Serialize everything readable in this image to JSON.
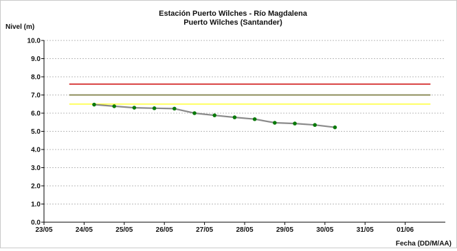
{
  "chart_data": {
    "type": "line",
    "title": "Estación Puerto Wilches - Río Magdalena",
    "subtitle": "Puerto Wilches (Santander)",
    "ylabel": "Nivel (m)",
    "xlabel": "Fecha (DD/M/AA)",
    "ylim": [
      0,
      10
    ],
    "xlim": [
      0,
      10
    ],
    "grid": true,
    "y_ticks": [
      "0.0",
      "1.0",
      "2.0",
      "3.0",
      "4.0",
      "5.0",
      "6.0",
      "7.0",
      "8.0",
      "9.0",
      "10.0"
    ],
    "x_ticks": [
      "23/05",
      "24/05",
      "25/05",
      "26/05",
      "27/05",
      "28/05",
      "29/05",
      "30/05",
      "31/05",
      "01/06"
    ],
    "thresholds": [
      {
        "value": 7.6,
        "x": [
          0.63,
          9.63
        ],
        "color": "#cc0000"
      },
      {
        "value": 7.0,
        "x": [
          0.63,
          9.63
        ],
        "color": "#8c8c5a"
      },
      {
        "value": 6.5,
        "x": [
          0.63,
          9.63
        ],
        "color": "#ffff33"
      }
    ],
    "series": [
      {
        "x": [
          1.25,
          1.75,
          2.25,
          2.75,
          3.25,
          3.75,
          4.25,
          4.75,
          5.25,
          5.75,
          6.25,
          6.75,
          7.25
        ],
        "values": [
          6.47,
          6.38,
          6.3,
          6.27,
          6.25,
          6.0,
          5.88,
          5.77,
          5.67,
          5.47,
          5.43,
          5.35,
          5.22
        ],
        "line_color": "#8a8a8a",
        "marker_color": "#0a7a0a"
      }
    ]
  }
}
